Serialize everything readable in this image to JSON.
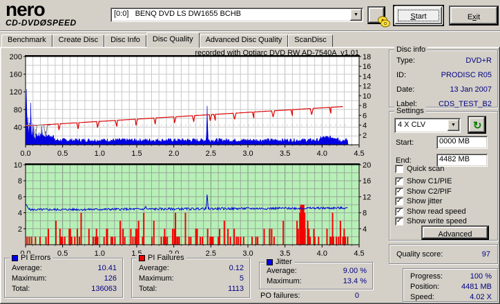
{
  "toolbar": {
    "logo": {
      "line1": "nero",
      "line2_left": "CD-DVD",
      "disc_glyph": "Ø",
      "line2_right": "SPEED"
    },
    "drive_select": {
      "value": "[0:0]   BENQ DVD LS DW1655 BCHB"
    },
    "start_button": {
      "pre": "",
      "key": "S",
      "rest": "tart"
    },
    "exit_button": {
      "pre": "E",
      "key": "x",
      "rest": "it"
    }
  },
  "icons": {
    "dropdown_glyph": "▼",
    "refresh_glyph": "↻",
    "check_glyph": "✓"
  },
  "tabs": [
    {
      "label": "Benchmark",
      "active": false
    },
    {
      "label": "Create Disc",
      "active": false
    },
    {
      "label": "Disc Info",
      "active": false
    },
    {
      "label": "Disc Quality",
      "active": true
    },
    {
      "label": "Advanced Disc Quality",
      "active": false
    },
    {
      "label": "ScanDisc",
      "active": false
    }
  ],
  "chart_data": [
    {
      "type": "area",
      "name": "pi-errors-vs-position",
      "title": "recorded with Optiarc DVD RW AD-7540A  v1.01",
      "x_axis": {
        "range": [
          0,
          4.5
        ],
        "ticks": [
          0,
          0.5,
          1,
          1.5,
          2,
          2.5,
          3,
          3.5,
          4,
          4.5
        ],
        "minor_step": 0.1,
        "unit": "GB"
      },
      "left_axis": {
        "label": "PI Errors",
        "range": [
          0,
          200
        ],
        "ticks": [
          200,
          160,
          120,
          80,
          40
        ],
        "grid_step": 20
      },
      "right_axis": {
        "label": "Speed (X)",
        "range": [
          0,
          18
        ],
        "ticks": [
          18,
          16,
          14,
          12,
          10,
          8,
          6,
          4,
          2
        ]
      },
      "data_end_x": 4.35,
      "series": [
        {
          "name": "PI Errors",
          "color": "#0000e0",
          "axis": "left",
          "render": "noise-area",
          "baseline": 6,
          "noise_amp": 9,
          "seed": 7,
          "step": 0.008,
          "elevated_regions": [
            [
              0.04,
              0.38,
              16
            ],
            [
              3.98,
              4.22,
              12
            ]
          ],
          "spikes": [
            [
              0.012,
              126
            ],
            [
              0.03,
              62
            ],
            [
              0.05,
              50
            ],
            [
              0.07,
              95
            ],
            [
              0.1,
              48
            ],
            [
              0.14,
              36
            ],
            [
              0.18,
              28
            ],
            [
              0.22,
              42
            ],
            [
              0.27,
              30
            ],
            [
              0.31,
              20
            ],
            [
              2.45,
              88
            ]
          ],
          "stats": {
            "average": 10.41,
            "maximum": 126,
            "total": 136063
          }
        },
        {
          "name": "Write speed",
          "color": "#dd0000",
          "axis": "right",
          "render": "trend-with-dips",
          "start_value": 3.85,
          "slope": 0.92,
          "end_x": 4.32,
          "dip_depth": 1.25,
          "dip_halfwidth": 0.02,
          "dips": [
            0.45,
            0.71,
            0.97,
            1.23,
            1.49,
            1.75,
            2.01,
            2.27,
            2.49,
            2.56,
            2.82,
            3.08,
            3.34,
            3.6,
            3.86,
            4.12
          ]
        },
        {
          "name": "Read speed",
          "color": "#909090",
          "axis": "right",
          "render": "flat-then-dotted",
          "value": 4.0,
          "solid_until": 0.33,
          "dips": [
            [
              0.13,
              1.3
            ],
            [
              0.27,
              1.6
            ]
          ],
          "dotted_until": 4.35
        }
      ]
    },
    {
      "type": "bar+line",
      "name": "pi-failures-and-jitter-vs-position",
      "plot_bg": "#b7f0b7",
      "x_axis": {
        "range": [
          0,
          4.5
        ],
        "ticks": [
          0,
          0.5,
          1,
          1.5,
          2,
          2.5,
          3,
          3.5,
          4,
          4.5
        ],
        "minor_step": 0.1,
        "unit": "GB"
      },
      "left_axis": {
        "label": "PI Failures",
        "range": [
          0,
          10
        ],
        "ticks": [
          10,
          8,
          6,
          4,
          2
        ],
        "grid_step": 1
      },
      "right_axis": {
        "label": "Jitter %",
        "range": [
          0,
          20
        ],
        "ticks": [
          20,
          16,
          12,
          8,
          4
        ]
      },
      "data_end_x": 4.35,
      "series": [
        {
          "name": "PI Failures",
          "color": "#f40000",
          "axis": "left",
          "render": "random-bars",
          "seed": 11,
          "gap_min": 0.01,
          "gap_rand": 0.025,
          "density": 0.55,
          "height_dist": [
            [
              0.62,
              1
            ],
            [
              0.84,
              2
            ],
            [
              0.94,
              3
            ],
            [
              1,
              4
            ]
          ],
          "cluster": {
            "start_x": 3.705,
            "step": 0.014,
            "heights": [
              4,
              5,
              5,
              5,
              4
            ]
          },
          "stats": {
            "average": 0.12,
            "maximum": 5,
            "total": 1113
          }
        },
        {
          "name": "Jitter",
          "color": "#0000d8",
          "axis": "right",
          "render": "noise-line",
          "base": 8.75,
          "slope": 0.1,
          "noise_amp": 0.55,
          "seed": 5,
          "step": 0.008,
          "start_bump": {
            "until": 0.06,
            "extra": 1.3
          },
          "spikes": [
            [
              2.45,
              13.2
            ],
            [
              1.62,
              10.6
            ]
          ],
          "stats": {
            "average_pct": 9.0,
            "maximum_pct": 13.4
          }
        }
      ]
    }
  ],
  "disc_info": {
    "title": "Disc info",
    "rows": [
      [
        "Type:",
        "DVD+R"
      ],
      [
        "ID:",
        "PRODISC R05"
      ],
      [
        "Date:",
        "13 Jan 2007"
      ],
      [
        "Label:",
        "CDS_TEST_B2"
      ]
    ]
  },
  "settings": {
    "title": "Settings",
    "speed_value": "4 X CLV",
    "start_label": "Start:",
    "start_value": "0000 MB",
    "end_label": "End:",
    "end_value": "4482 MB",
    "checkboxes": [
      {
        "label": "Quick scan",
        "checked": false
      },
      {
        "label": "Show C1/PIE",
        "checked": true
      },
      {
        "label": "Show C2/PIF",
        "checked": true
      },
      {
        "label": "Show jitter",
        "checked": true
      },
      {
        "label": "Show read speed",
        "checked": true
      },
      {
        "label": "Show write speed",
        "checked": true
      }
    ],
    "advanced_label": "Advanced"
  },
  "quality": {
    "label": "Quality score:",
    "value": "97"
  },
  "stats": {
    "pi_errors": {
      "title": "PI Errors",
      "marker_color": "#0000f0",
      "rows": [
        [
          "Average:",
          "10.41"
        ],
        [
          "Maximum:",
          "126"
        ],
        [
          "Total:",
          "136063"
        ]
      ]
    },
    "pi_failures": {
      "title": "PI Failures",
      "marker_color": "#f00000",
      "rows": [
        [
          "Average:",
          "0.12"
        ],
        [
          "Maximum:",
          "5"
        ],
        [
          "Total:",
          "1113"
        ]
      ]
    },
    "jitter": {
      "title": "Jitter",
      "marker_color": "#0000f0",
      "rows": [
        [
          "Average:",
          "9.00 %"
        ],
        [
          "Maximum:",
          "13.4 %"
        ]
      ]
    },
    "po_failures": {
      "label": "PO failures:",
      "value": "0"
    }
  },
  "progress_panel": {
    "rows": [
      [
        "Progress:",
        "100 %"
      ],
      [
        "Position:",
        "4481 MB"
      ],
      [
        "Speed:",
        "4.02 X"
      ]
    ]
  }
}
